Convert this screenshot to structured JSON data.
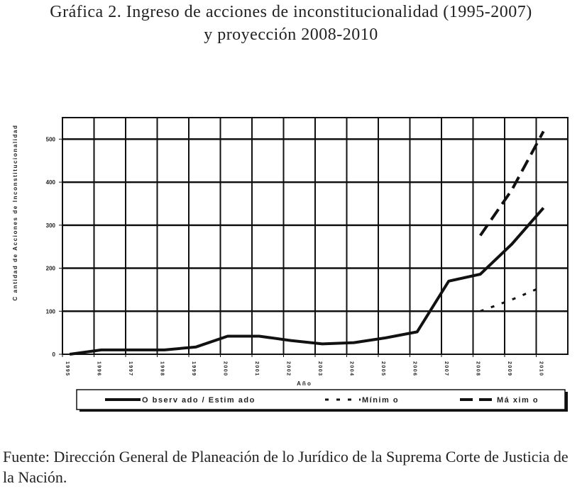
{
  "header": {
    "title_line1": "Gráfica 2. Ingreso de acciones de inconstitucionalidad (1995-2007)",
    "title_line2": "y proyección 2008-2010"
  },
  "source_note": "Fuente: Dirección General de Planeación de lo Jurídico de la Suprema Corte de Justicia de la Nación.",
  "chart_data": {
    "type": "line",
    "title": "Ingreso de acciones de inconstitucionalidad (1995-2007) y proyección 2008-2010",
    "xlabel": "A ñ o",
    "ylabel": "C antidad de Acciones de Inconstitucionalidad",
    "categories": [
      "1995",
      "1996",
      "1997",
      "1998",
      "1999",
      "2000",
      "2001",
      "2002",
      "2003",
      "2004",
      "2005",
      "2006",
      "2007",
      "2008",
      "2009",
      "2010"
    ],
    "yticks": [
      0,
      100,
      200,
      300,
      400,
      500
    ],
    "ylim": [
      0,
      550
    ],
    "grid": true,
    "legend_position": "bottom",
    "series": [
      {
        "name": "O bserv ado / Estim ado",
        "style": "solid",
        "values": [
          0,
          10,
          10,
          10,
          17,
          42,
          42,
          32,
          24,
          27,
          38,
          52,
          170,
          186,
          256,
          340
        ]
      },
      {
        "name": "Mínim o",
        "style": "dotted",
        "values": [
          null,
          null,
          null,
          null,
          null,
          null,
          null,
          null,
          null,
          null,
          null,
          null,
          null,
          100,
          127,
          158
        ]
      },
      {
        "name": "Má xim o",
        "style": "dashed",
        "values": [
          null,
          null,
          null,
          null,
          null,
          null,
          null,
          null,
          null,
          null,
          null,
          null,
          null,
          276,
          382,
          518
        ]
      }
    ],
    "colors": {
      "line": "#111111",
      "grid": "#111111",
      "text": "#222222"
    }
  }
}
